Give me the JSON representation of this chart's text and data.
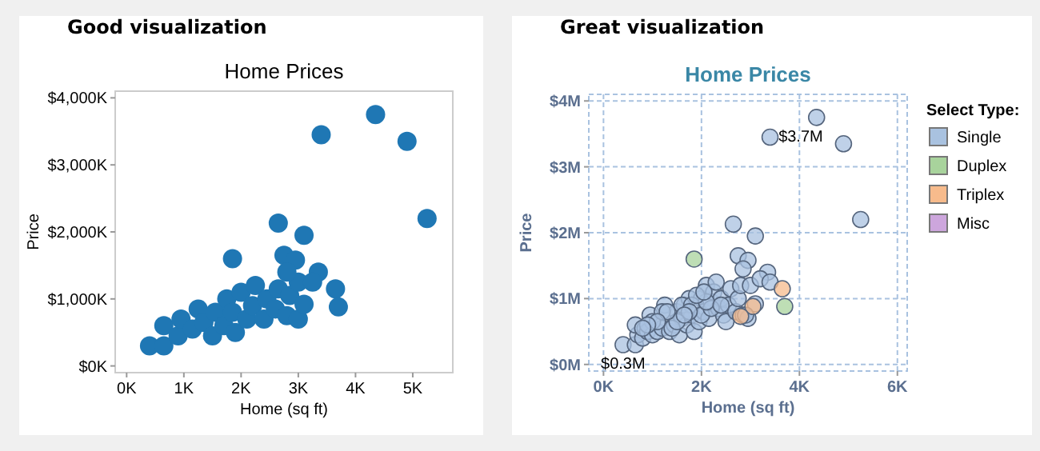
{
  "chart_data": [
    {
      "type": "scatter",
      "title": "Home Prices",
      "annotations": [
        "Good visualization"
      ],
      "xlabel": "Home (sq ft)",
      "ylabel": "Price",
      "marker": "circle",
      "grid": false,
      "xlim": [
        -200,
        5700
      ],
      "ylim": [
        -100,
        4100
      ],
      "xticks": [
        {
          "value": 0,
          "label": "0K"
        },
        {
          "value": 1000,
          "label": "1K"
        },
        {
          "value": 2000,
          "label": "2K"
        },
        {
          "value": 3000,
          "label": "3K"
        },
        {
          "value": 4000,
          "label": "4K"
        },
        {
          "value": 5000,
          "label": "5K"
        }
      ],
      "yticks": [
        {
          "value": 0,
          "label": "$0K"
        },
        {
          "value": 1000,
          "label": "$1,000K"
        },
        {
          "value": 2000,
          "label": "$2,000K"
        },
        {
          "value": 3000,
          "label": "$3,000K"
        },
        {
          "value": 4000,
          "label": "$4,000K"
        }
      ],
      "series": [
        {
          "color": "#1f77b4",
          "x": [
            400,
            650,
            650,
            900,
            950,
            1150,
            1250,
            1350,
            1500,
            1550,
            1700,
            1750,
            1850,
            1900,
            2000,
            2100,
            2200,
            2250,
            2400,
            2450,
            2600,
            2650,
            2800,
            2850,
            3000,
            3000,
            3400,
            4350,
            4900,
            5250,
            2650,
            3100,
            1850,
            2750,
            2950,
            2800,
            3350,
            3250,
            3100,
            3650,
            3700
          ],
          "values": [
            300,
            300,
            600,
            450,
            700,
            550,
            850,
            650,
            450,
            800,
            600,
            1000,
            800,
            500,
            1100,
            700,
            900,
            1200,
            700,
            1000,
            850,
            1150,
            750,
            1050,
            700,
            1250,
            3450,
            3750,
            3350,
            2200,
            2130,
            1950,
            1600,
            1650,
            1580,
            1400,
            1400,
            1250,
            920,
            1150,
            880
          ]
        }
      ]
    },
    {
      "type": "scatter",
      "title": "Home Prices",
      "annotations": [
        "Great visualization",
        {
          "text": "$3.7M",
          "x": 4350,
          "y": 3.75
        },
        {
          "text": "$0.3M",
          "x": 400,
          "y": 0.3
        }
      ],
      "xlabel": "Home (sq ft)",
      "ylabel": "Price",
      "marker": "circle",
      "grid": true,
      "legend": "right",
      "legend_title": "Select Type:",
      "xlim": [
        -300,
        6200
      ],
      "ylim": [
        -0.1,
        4.1
      ],
      "xticks": [
        {
          "value": 0,
          "label": "0K"
        },
        {
          "value": 2000,
          "label": "2K"
        },
        {
          "value": 4000,
          "label": "4K"
        },
        {
          "value": 6000,
          "label": "6K"
        }
      ],
      "yticks": [
        {
          "value": 0,
          "label": "$0M"
        },
        {
          "value": 1,
          "label": "$1M"
        },
        {
          "value": 2,
          "label": "$2M"
        },
        {
          "value": 3,
          "label": "$3M"
        },
        {
          "value": 4,
          "label": "$4M"
        }
      ],
      "series": [
        {
          "name": "Single",
          "color": "#a9c2e0",
          "x": [
            400,
            650,
            700,
            650,
            800,
            850,
            900,
            950,
            1000,
            1100,
            1200,
            1250,
            1350,
            1450,
            1500,
            1550,
            1600,
            1650,
            1700,
            1750,
            1800,
            1850,
            1950,
            2000,
            2050,
            2100,
            2150,
            2200,
            2250,
            2300,
            2350,
            2400,
            2450,
            2500,
            2550,
            2600,
            2700,
            2750,
            2800,
            2850,
            2950,
            3000,
            1000,
            1200,
            1400,
            1600,
            1800,
            2000,
            2200,
            1750,
            1500,
            1300,
            1100,
            900,
            800,
            2100,
            2400,
            1650,
            1900,
            2050,
            3400,
            4350,
            4900,
            5250,
            2650,
            3100,
            2750,
            2950,
            2850,
            3350,
            3200,
            3400,
            3100,
            2900
          ],
          "values": [
            0.3,
            0.3,
            0.45,
            0.6,
            0.4,
            0.55,
            0.5,
            0.75,
            0.45,
            0.5,
            0.55,
            0.9,
            0.5,
            0.6,
            0.8,
            0.45,
            0.7,
            0.9,
            0.6,
            1,
            0.75,
            0.5,
            0.65,
            1,
            0.8,
            1.2,
            0.7,
            0.95,
            1.1,
            1.25,
            0.85,
            1,
            0.75,
            0.65,
            0.9,
            1.15,
            0.8,
            1,
            1.2,
            0.75,
            0.7,
            1.2,
            0.65,
            0.8,
            0.55,
            0.9,
            0.9,
            0.75,
            0.85,
            0.8,
            0.65,
            0.8,
            0.65,
            0.6,
            0.55,
            0.95,
            0.9,
            0.75,
            1.05,
            1.1,
            3.45,
            3.75,
            3.35,
            2.2,
            2.13,
            1.95,
            1.65,
            1.58,
            1.45,
            1.4,
            1.3,
            1.25,
            0.92,
            0.75
          ]
        },
        {
          "name": "Duplex",
          "color": "#a8d39c",
          "x": [
            1850,
            3700
          ],
          "values": [
            1.6,
            0.88
          ]
        },
        {
          "name": "Triplex",
          "color": "#f7bb8c",
          "x": [
            3650,
            3050,
            2800
          ],
          "values": [
            1.15,
            0.88,
            0.73
          ]
        },
        {
          "name": "Misc",
          "color": "#cda6dd"
        }
      ]
    }
  ]
}
